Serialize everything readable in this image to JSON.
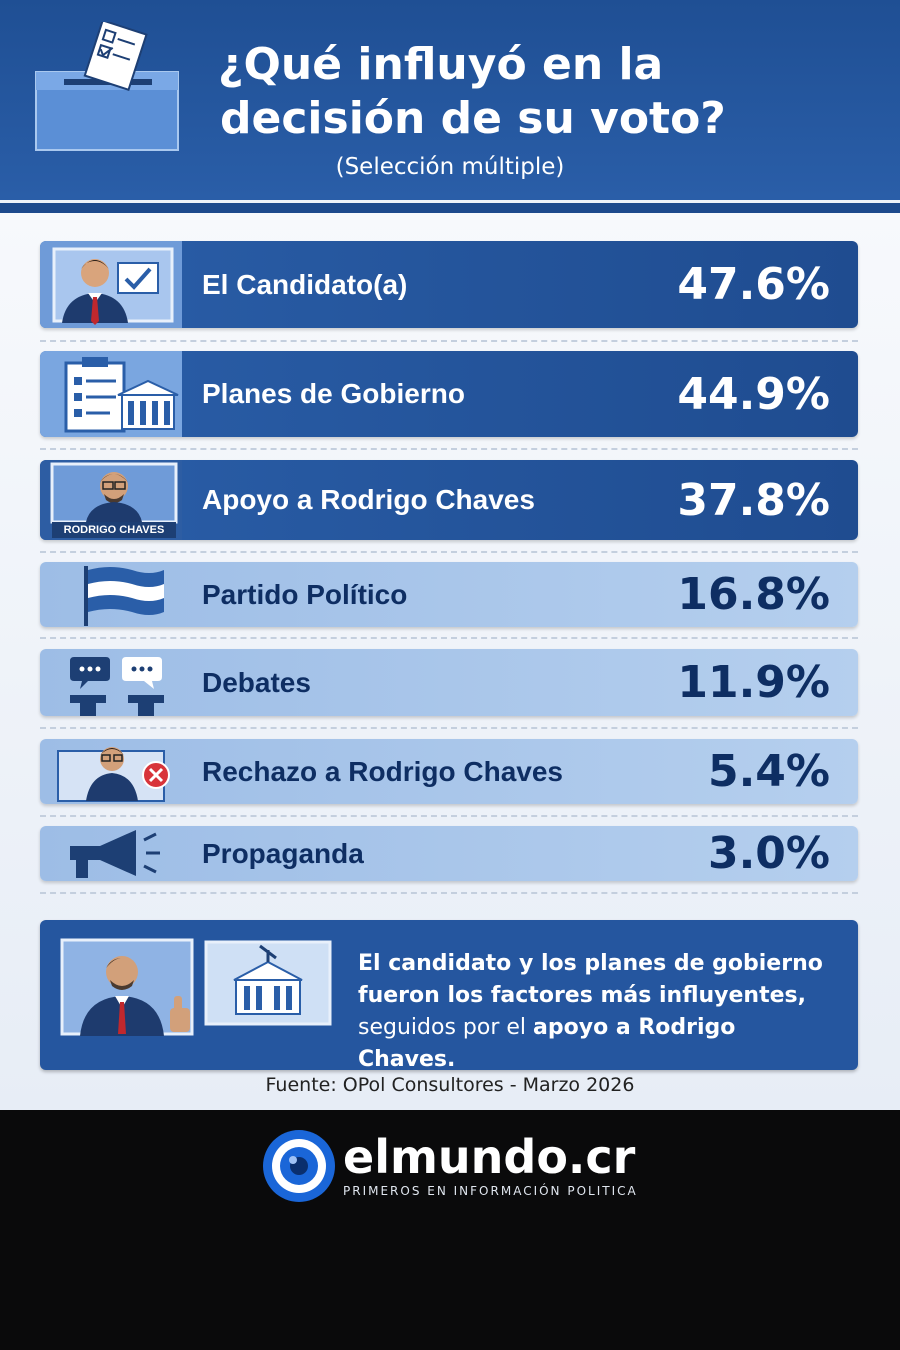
{
  "header": {
    "title_line1": "¿Qué influyó en la",
    "title_line2": "decisión de su voto?",
    "subtitle": "(Selección múltiple)"
  },
  "chart_data": {
    "type": "table",
    "title": "¿Qué influyó en la decisión de su voto?",
    "subtitle": "(Selección múltiple)",
    "categories": [
      "El Candidato(a)",
      "Planes de Gobierno",
      "Apoyo a Rodrigo Chaves",
      "Partido Político",
      "Debates",
      "Rechazo a Rodrigo Chaves",
      "Propaganda"
    ],
    "values": [
      47.6,
      44.9,
      37.8,
      16.8,
      11.9,
      5.4,
      3.0
    ],
    "value_labels": [
      "47.6%",
      "44.9%",
      "37.8%",
      "16.8%",
      "11.9%",
      "5.4%",
      "3.0%"
    ]
  },
  "rows": [
    {
      "label": "El Candidato(a)",
      "value": "47.6%",
      "icon": "candidate-icon"
    },
    {
      "label": "Planes de Gobierno",
      "value": "44.9%",
      "icon": "government-plans-icon"
    },
    {
      "label": "Apoyo a Rodrigo Chaves",
      "value": "37.8%",
      "icon": "rodrigo-chaves-portrait-icon",
      "badge": "RODRIGO CHAVES"
    },
    {
      "label": "Partido Político",
      "value": "16.8%",
      "icon": "flag-icon"
    },
    {
      "label": "Debates",
      "value": "11.9%",
      "icon": "debate-icon"
    },
    {
      "label": "Rechazo a Rodrigo Chaves",
      "value": "5.4%",
      "icon": "rejection-icon"
    },
    {
      "label": "Propaganda",
      "value": "3.0%",
      "icon": "megaphone-icon"
    }
  ],
  "summary": {
    "line1": "El candidato y los planes de gobierno",
    "line2": "fueron los factores más influyentes,",
    "line3_normal": "seguidos por el ",
    "line3_bold": "apoyo a Rodrigo Chaves."
  },
  "source": "Fuente: OPol Consultores - Marzo 2026",
  "footer": {
    "brand": "elmundo.cr",
    "tagline": "PRIMEROS EN INFORMACIÓN POLITICA"
  },
  "colors": {
    "header_bg": "#2a5ea8",
    "dark_row": "#25569f",
    "light_row": "#a7c4e8",
    "dark_text": "#0e2e63",
    "footer_bg": "#0a0a0b"
  }
}
